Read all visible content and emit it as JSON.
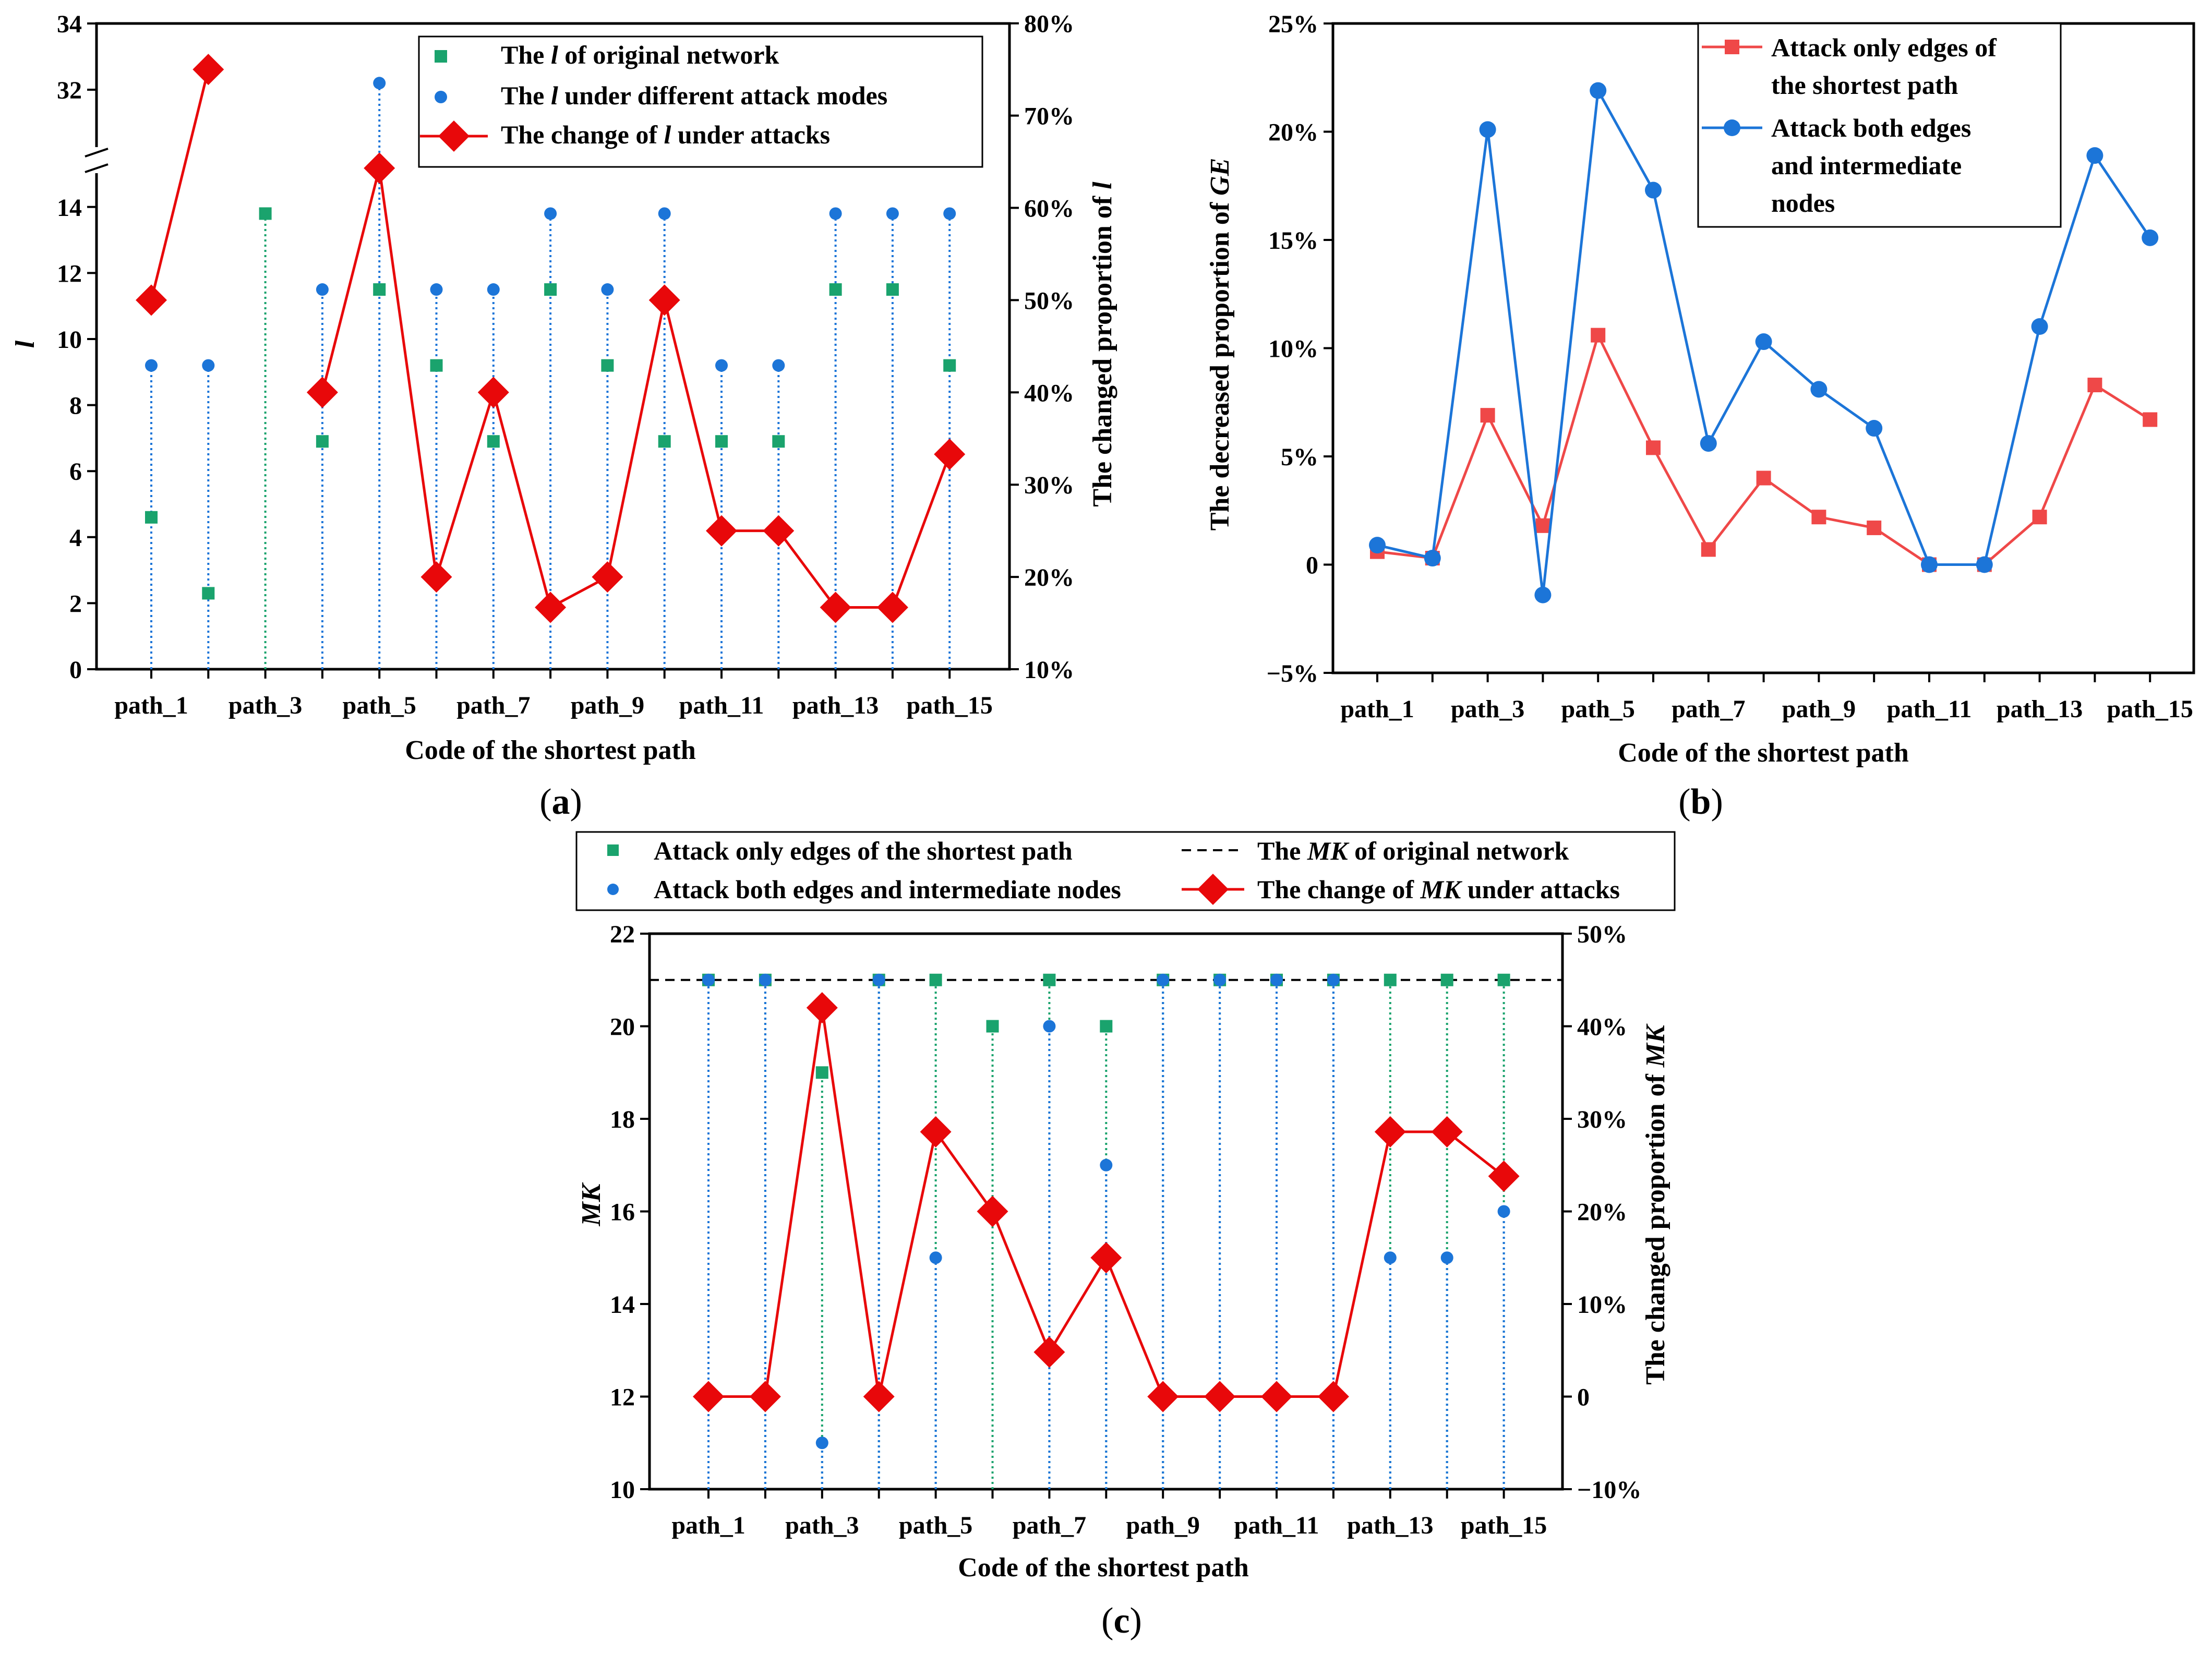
{
  "chart_data": [
    {
      "panel_label": "(a)",
      "type": "scatter+line",
      "categories": [
        "path_1",
        "path_2",
        "path_3",
        "path_4",
        "path_5",
        "path_6",
        "path_7",
        "path_8",
        "path_9",
        "path_10",
        "path_11",
        "path_12",
        "path_13",
        "path_14",
        "path_15"
      ],
      "xtick_labels": [
        "path_1",
        "path_3",
        "path_5",
        "path_7",
        "path_9",
        "path_11",
        "path_13",
        "path_15"
      ],
      "xlabel": "Code of the shortest path",
      "ylabel": "l",
      "ylabel_right": "The changed proportion of l",
      "y_left_ticks_lower": [
        "0",
        "2",
        "4",
        "6",
        "8",
        "10",
        "12",
        "14"
      ],
      "y_left_ticks_upper": [
        "32",
        "34"
      ],
      "y_left_break": [
        15,
        31
      ],
      "y_right_ticks": [
        "10%",
        "20%",
        "30%",
        "40%",
        "50%",
        "60%",
        "70%",
        "80%"
      ],
      "ylim_right": [
        10,
        80
      ],
      "series": [
        {
          "name": "The l of original network",
          "legend_label": "The ",
          "legend_italic": "l",
          "legend_suffix": " of original network",
          "marker": "square",
          "color": "#1aa36d",
          "axis": "left",
          "values": [
            4.6,
            2.3,
            13.8,
            6.9,
            11.5,
            9.2,
            6.9,
            11.5,
            9.2,
            6.9,
            6.9,
            6.9,
            11.5,
            11.5,
            9.2
          ]
        },
        {
          "name": "The l under different attack modes",
          "legend_label": "The ",
          "legend_italic": "l",
          "legend_suffix": " under different attack modes",
          "marker": "circle",
          "color": "#1c75d8",
          "axis": "left",
          "values": [
            9.2,
            9.2,
            null,
            11.5,
            32.2,
            11.5,
            11.5,
            13.8,
            11.5,
            13.8,
            9.2,
            9.2,
            13.8,
            13.8,
            13.8
          ]
        },
        {
          "name": "The change of l under attacks",
          "legend_label": "The change of ",
          "legend_italic": "l",
          "legend_suffix": " under attacks",
          "marker": "diamond",
          "color": "#e8080a",
          "axis": "right",
          "values": [
            50,
            75,
            null,
            40,
            64.3,
            20,
            40,
            16.7,
            20,
            50,
            25,
            25,
            16.7,
            16.7,
            33.3
          ]
        }
      ]
    },
    {
      "panel_label": "(b)",
      "type": "line",
      "categories": [
        "path_1",
        "path_2",
        "path_3",
        "path_4",
        "path_5",
        "path_6",
        "path_7",
        "path_8",
        "path_9",
        "path_10",
        "path_11",
        "path_12",
        "path_13",
        "path_14",
        "path_15"
      ],
      "xtick_labels": [
        "path_1",
        "path_3",
        "path_5",
        "path_7",
        "path_9",
        "path_11",
        "path_13",
        "path_15"
      ],
      "xlabel": "Code of the shortest path",
      "ylabel": "The decreased proportion of GE",
      "y_ticks": [
        "−5%",
        "0",
        "5%",
        "10%",
        "15%",
        "20%",
        "25%"
      ],
      "ylim": [
        -5,
        25
      ],
      "series": [
        {
          "name": "Attack only edges of the shortest path",
          "legend_lines": [
            "Attack only edges of",
            "the shortest path"
          ],
          "marker": "square",
          "color": "#ef4848",
          "values": [
            0.6,
            0.3,
            6.9,
            1.8,
            10.6,
            5.4,
            0.7,
            4.0,
            2.2,
            1.7,
            0.0,
            0.0,
            2.2,
            8.3,
            6.7
          ]
        },
        {
          "name": "Attack both edges and intermediate nodes",
          "legend_lines": [
            "Attack both edges",
            "and intermediate",
            "nodes"
          ],
          "marker": "circle",
          "color": "#1c75d8",
          "values": [
            0.9,
            0.3,
            20.1,
            -1.4,
            21.9,
            17.3,
            5.6,
            10.3,
            8.1,
            6.3,
            0.0,
            0.0,
            11.0,
            18.9,
            15.1
          ]
        }
      ]
    },
    {
      "panel_label": "(c)",
      "type": "scatter+line",
      "categories": [
        "path_1",
        "path_2",
        "path_3",
        "path_4",
        "path_5",
        "path_6",
        "path_7",
        "path_8",
        "path_9",
        "path_10",
        "path_11",
        "path_12",
        "path_13",
        "path_14",
        "path_15"
      ],
      "xtick_labels": [
        "path_1",
        "path_3",
        "path_5",
        "path_7",
        "path_9",
        "path_11",
        "path_13",
        "path_15"
      ],
      "xlabel": "Code of the shortest path",
      "ylabel": "MK",
      "ylabel_right": "The changed proportion of  MK",
      "y_left_ticks": [
        "10",
        "12",
        "14",
        "16",
        "18",
        "20",
        "22"
      ],
      "ylim": [
        10,
        22
      ],
      "y_right_ticks": [
        "−10%",
        "0",
        "10%",
        "20%",
        "30%",
        "40%",
        "50%"
      ],
      "ylim_right": [
        -10,
        50
      ],
      "baseline": {
        "name": "The MK of original network",
        "legend_label": "The ",
        "legend_italic": "MK",
        "legend_suffix": " of  original network",
        "value": 21
      },
      "series": [
        {
          "name": "Attack only edges of the shortest path",
          "legend_label": "Attack only edges of the shortest path",
          "marker": "square",
          "color": "#1aa36d",
          "axis": "left",
          "values": [
            21,
            21,
            19,
            21,
            21,
            20,
            21,
            20,
            21,
            21,
            21,
            21,
            21,
            21,
            21
          ]
        },
        {
          "name": "Attack both edges and intermediate nodes",
          "legend_label": "Attack both edges and intermediate nodes",
          "marker": "circle",
          "color": "#1c75d8",
          "axis": "left",
          "values": [
            21,
            21,
            11,
            21,
            15,
            null,
            20,
            17,
            21,
            21,
            21,
            21,
            15,
            15,
            16
          ]
        },
        {
          "name": "The change of MK under attacks",
          "legend_label": "The change of  ",
          "legend_italic": "MK",
          "legend_suffix": " under attacks",
          "marker": "diamond",
          "color": "#e8080a",
          "axis": "right",
          "values": [
            0,
            0,
            42,
            0,
            28.6,
            20,
            4.8,
            15,
            0,
            0,
            0,
            0,
            28.6,
            28.6,
            23.8
          ]
        }
      ]
    }
  ]
}
